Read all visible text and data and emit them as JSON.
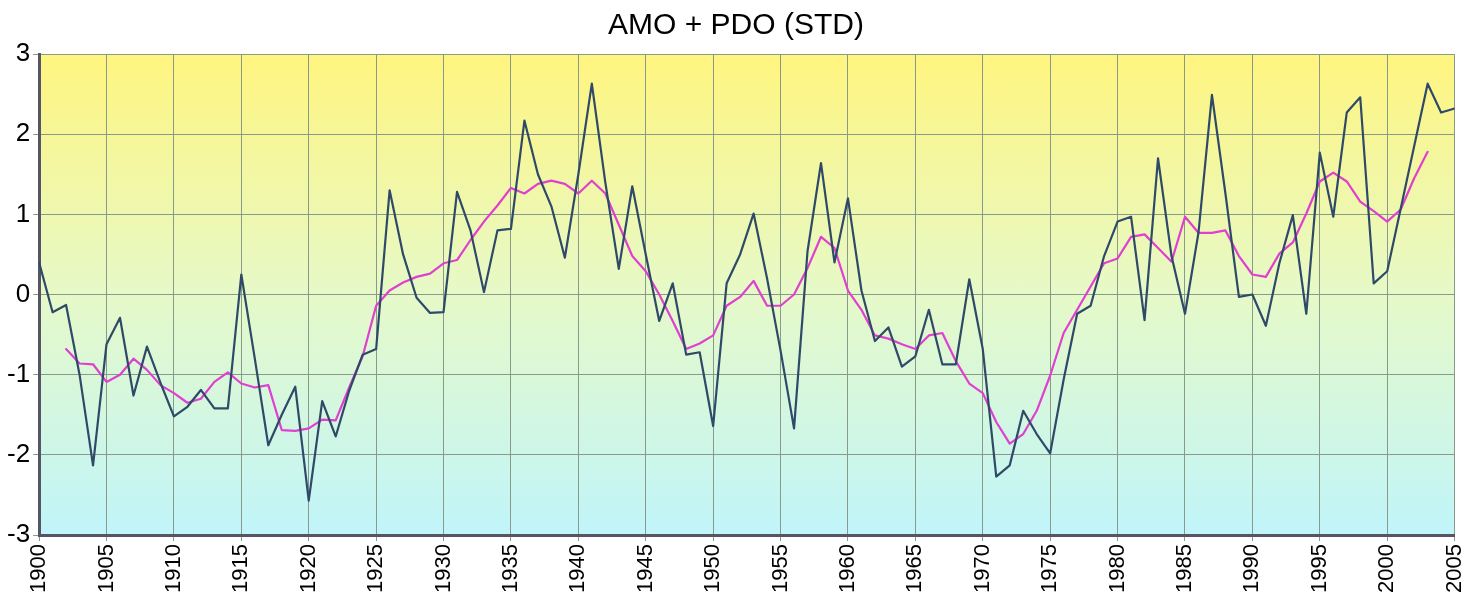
{
  "chart_data": {
    "type": "line",
    "title": "AMO + PDO (STD)",
    "x": [
      1900,
      1901,
      1902,
      1903,
      1904,
      1905,
      1906,
      1907,
      1908,
      1909,
      1910,
      1911,
      1912,
      1913,
      1914,
      1915,
      1916,
      1917,
      1918,
      1919,
      1920,
      1921,
      1922,
      1923,
      1924,
      1925,
      1926,
      1927,
      1928,
      1929,
      1930,
      1931,
      1932,
      1933,
      1934,
      1935,
      1936,
      1937,
      1938,
      1939,
      1940,
      1941,
      1942,
      1943,
      1944,
      1945,
      1946,
      1947,
      1948,
      1949,
      1950,
      1951,
      1952,
      1953,
      1954,
      1955,
      1956,
      1957,
      1958,
      1959,
      1960,
      1961,
      1962,
      1963,
      1964,
      1965,
      1966,
      1967,
      1968,
      1969,
      1970,
      1971,
      1972,
      1973,
      1974,
      1975,
      1976,
      1977,
      1978,
      1979,
      1980,
      1981,
      1982,
      1983,
      1984,
      1985,
      1986,
      1987,
      1988,
      1989,
      1990,
      1991,
      1992,
      1993,
      1994,
      1995,
      1996,
      1997,
      1998,
      1999,
      2000,
      2001,
      2002,
      2003,
      2004,
      2005
    ],
    "series": [
      {
        "color": "#2f4a68",
        "values": [
          0.4,
          -0.22,
          -0.13,
          -1.0,
          -2.13,
          -0.62,
          -0.29,
          -1.26,
          -0.65,
          -1.1,
          -1.52,
          -1.4,
          -1.19,
          -1.42,
          -1.42,
          0.25,
          -0.8,
          -1.88,
          -1.5,
          -1.15,
          -2.57,
          -1.33,
          -1.77,
          -1.2,
          -0.75,
          -0.68,
          1.3,
          0.5,
          -0.04,
          -0.23,
          -0.22,
          1.28,
          0.8,
          0.03,
          0.8,
          0.82,
          2.17,
          1.5,
          1.1,
          0.46,
          1.5,
          2.63,
          1.4,
          0.32,
          1.35,
          0.5,
          -0.33,
          0.14,
          -0.75,
          -0.72,
          -1.64,
          0.14,
          0.5,
          1.01,
          0.2,
          -0.7,
          -1.67,
          0.54,
          1.64,
          0.4,
          1.2,
          0.05,
          -0.58,
          -0.41,
          -0.9,
          -0.77,
          -0.19,
          -0.87,
          -0.87,
          0.19,
          -0.68,
          -2.27,
          -2.13,
          -1.45,
          -1.74,
          -1.98,
          -1.06,
          -0.24,
          -0.14,
          0.48,
          0.91,
          0.97,
          -0.32,
          1.7,
          0.48,
          -0.24,
          0.77,
          2.49,
          1.26,
          -0.03,
          0.0,
          -0.39,
          0.39,
          0.99,
          -0.24,
          1.77,
          0.97,
          2.27,
          2.46,
          0.14,
          0.29,
          1.07,
          1.85,
          2.63,
          2.27,
          2.32
        ]
      },
      {
        "color": "#e040d0",
        "values": [
          null,
          null,
          -0.68,
          -0.86,
          -0.87,
          -1.09,
          -1.0,
          -0.8,
          -0.94,
          -1.13,
          -1.23,
          -1.35,
          -1.3,
          -1.09,
          -0.97,
          -1.11,
          -1.16,
          -1.13,
          -1.69,
          -1.7,
          -1.67,
          -1.56,
          -1.57,
          -1.16,
          -0.77,
          -0.14,
          0.05,
          0.15,
          0.22,
          0.26,
          0.39,
          0.43,
          0.68,
          0.91,
          1.11,
          1.33,
          1.26,
          1.38,
          1.42,
          1.38,
          1.26,
          1.42,
          1.26,
          0.87,
          0.48,
          0.29,
          0,
          -0.33,
          -0.68,
          -0.61,
          -0.51,
          -0.14,
          -0.03,
          0.17,
          -0.14,
          -0.14,
          0,
          0.33,
          0.72,
          0.58,
          0.05,
          -0.19,
          -0.51,
          -0.55,
          -0.62,
          -0.68,
          -0.51,
          -0.48,
          -0.83,
          -1.11,
          -1.23,
          -1.59,
          -1.86,
          -1.74,
          -1.45,
          -1.01,
          -0.48,
          -0.19,
          0.1,
          0.39,
          0.45,
          0.72,
          0.75,
          0.58,
          0.41,
          0.97,
          0.77,
          0.77,
          0.8,
          0.48,
          0.25,
          0.22,
          0.51,
          0.65,
          1.01,
          1.41,
          1.52,
          1.41,
          1.16,
          1.04,
          0.91,
          1.06,
          1.45,
          1.78,
          null,
          null
        ]
      }
    ],
    "xlim": [
      1900,
      2005
    ],
    "xticks": [
      1900,
      1905,
      1910,
      1915,
      1920,
      1925,
      1930,
      1935,
      1940,
      1945,
      1950,
      1955,
      1960,
      1965,
      1970,
      1975,
      1980,
      1985,
      1990,
      1995,
      2000,
      2005
    ],
    "ylim": [
      -3,
      3
    ],
    "yticks": [
      -3,
      -2,
      -1,
      0,
      1,
      2,
      3
    ],
    "grid": true,
    "legend": false,
    "marker": "none",
    "line_style": "solid"
  }
}
